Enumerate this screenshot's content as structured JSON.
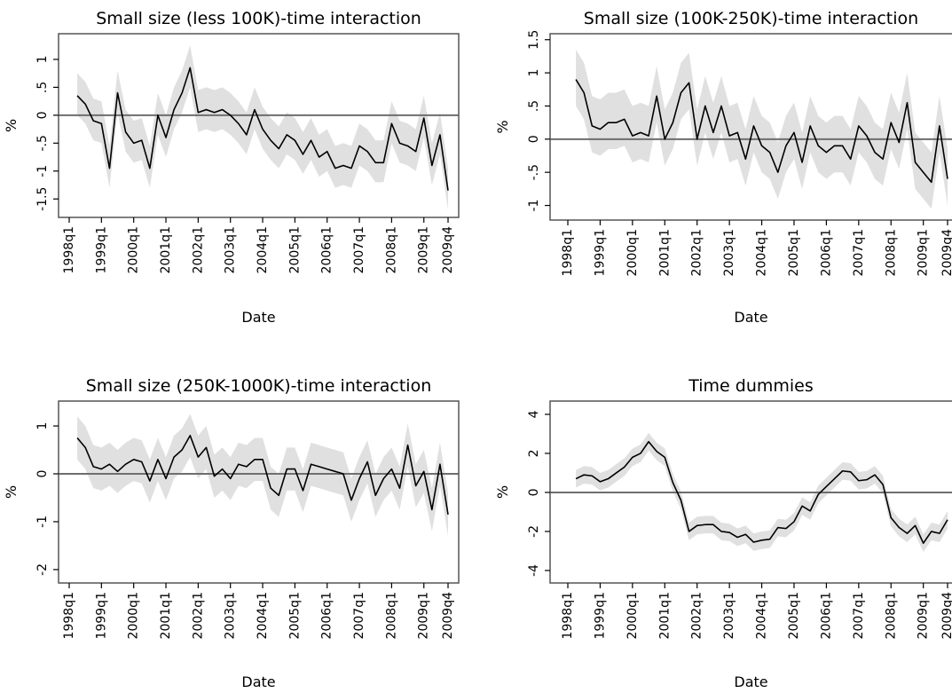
{
  "chart_data": [
    {
      "type": "line",
      "title": "Small size (less 100K)-time interaction",
      "xlabel": "Date",
      "ylabel": "%",
      "categories": [
        "1998q1",
        null,
        null,
        null,
        "1999q1",
        null,
        null,
        null,
        "2000q1",
        null,
        null,
        null,
        "2001q1",
        null,
        null,
        null,
        "2002q1",
        null,
        null,
        null,
        "2003q1",
        null,
        null,
        null,
        "2004q1",
        null,
        null,
        null,
        "2005q1",
        null,
        null,
        null,
        "2006q1",
        null,
        null,
        null,
        "2007q1",
        null,
        null,
        null,
        "2008q1",
        null,
        null,
        null,
        "2009q1",
        null,
        null,
        "2009q4"
      ],
      "values": [
        null,
        0.35,
        0.2,
        -0.1,
        -0.15,
        -0.95,
        0.4,
        -0.3,
        -0.5,
        -0.45,
        -0.95,
        0,
        -0.4,
        0.1,
        0.4,
        0.85,
        0.05,
        0.1,
        0.05,
        0.1,
        0,
        -0.15,
        -0.35,
        0.1,
        -0.25,
        -0.45,
        -0.6,
        -0.35,
        -0.45,
        -0.7,
        -0.45,
        -0.75,
        -0.65,
        -0.95,
        -0.9,
        -0.95,
        -0.55,
        -0.65,
        -0.85,
        -0.85,
        -0.15,
        -0.5,
        -0.55,
        -0.65,
        -0.05,
        -0.9,
        -0.35,
        -1.35
      ],
      "lower": [
        null,
        0,
        -0.15,
        -0.45,
        -0.5,
        -1.3,
        0.05,
        -0.65,
        -0.85,
        -0.8,
        -1.3,
        -0.35,
        -0.75,
        -0.25,
        0.05,
        0.5,
        -0.3,
        -0.25,
        -0.3,
        -0.25,
        -0.35,
        -0.5,
        -0.7,
        -0.25,
        -0.6,
        -0.8,
        -0.95,
        -0.7,
        -0.8,
        -1.05,
        -0.8,
        -1.1,
        -1,
        -1.3,
        -1.25,
        -1.3,
        -0.9,
        -1,
        -1.2,
        -1.2,
        -0.5,
        -0.85,
        -0.9,
        -1,
        -0.4,
        -1.25,
        -0.7,
        -1.7
      ],
      "upper": [
        null,
        0.75,
        0.6,
        0.3,
        0.25,
        -0.55,
        0.8,
        0.1,
        -0.1,
        -0.05,
        -0.55,
        0.4,
        0,
        0.5,
        0.8,
        1.25,
        0.45,
        0.5,
        0.45,
        0.5,
        0.4,
        0.25,
        0.05,
        0.5,
        0.15,
        -0.05,
        -0.2,
        0.05,
        -0.05,
        -0.3,
        -0.05,
        -0.35,
        -0.25,
        -0.55,
        -0.5,
        -0.55,
        -0.15,
        -0.25,
        -0.45,
        -0.45,
        0.25,
        -0.1,
        -0.15,
        -0.25,
        0.35,
        -0.5,
        0.05,
        -0.95
      ],
      "ylim": [
        -1.83,
        1.46
      ],
      "yticks": [
        1,
        {
          "value": 0.5,
          "label": ".5"
        },
        0,
        {
          "value": -0.5,
          "label": "-.5"
        },
        -1,
        -1.5
      ],
      "hline": 0,
      "color": "#000000",
      "band_color": "#e0e0e0",
      "hline_color": "#6e6e6e"
    },
    {
      "type": "line",
      "title": "Small size (100K-250K)-time interaction",
      "xlabel": "Date",
      "ylabel": "%",
      "categories": [
        "1998q1",
        null,
        null,
        null,
        "1999q1",
        null,
        null,
        null,
        "2000q1",
        null,
        null,
        null,
        "2001q1",
        null,
        null,
        null,
        "2002q1",
        null,
        null,
        null,
        "2003q1",
        null,
        null,
        null,
        "2004q1",
        null,
        null,
        null,
        "2005q1",
        null,
        null,
        null,
        "2006q1",
        null,
        null,
        null,
        "2007q1",
        null,
        null,
        null,
        "2008q1",
        null,
        null,
        null,
        "2009q1",
        null,
        null,
        "2009q4"
      ],
      "values": [
        null,
        0.9,
        0.7,
        0.2,
        0.15,
        0.25,
        0.25,
        0.3,
        0.05,
        0.1,
        0.05,
        0.65,
        0,
        0.25,
        0.7,
        0.85,
        0,
        0.5,
        0.1,
        0.5,
        0.05,
        0.1,
        -0.3,
        0.2,
        -0.1,
        -0.2,
        -0.5,
        -0.1,
        0.1,
        -0.35,
        0.2,
        -0.1,
        -0.2,
        -0.1,
        -0.1,
        -0.3,
        0.2,
        0.05,
        -0.2,
        -0.3,
        0.25,
        -0.05,
        0.55,
        -0.35,
        -0.5,
        -0.65,
        0.2,
        -0.6
      ],
      "lower": [
        null,
        0.5,
        0.3,
        -0.2,
        -0.25,
        -0.15,
        -0.15,
        -0.1,
        -0.35,
        -0.3,
        -0.35,
        0.25,
        -0.4,
        -0.15,
        0.3,
        0.45,
        -0.4,
        0.1,
        -0.3,
        0.1,
        -0.35,
        -0.3,
        -0.7,
        -0.2,
        -0.5,
        -0.6,
        -0.9,
        -0.5,
        -0.3,
        -0.75,
        -0.2,
        -0.5,
        -0.6,
        -0.5,
        -0.5,
        -0.7,
        -0.2,
        -0.35,
        -0.6,
        -0.7,
        -0.15,
        -0.45,
        0.15,
        -0.75,
        -0.9,
        -1.05,
        -0.2,
        -1
      ],
      "upper": [
        null,
        1.35,
        1.15,
        0.65,
        0.6,
        0.7,
        0.7,
        0.75,
        0.5,
        0.55,
        0.5,
        1.1,
        0.45,
        0.7,
        1.15,
        1.3,
        0.45,
        0.95,
        0.55,
        0.95,
        0.5,
        0.55,
        0.15,
        0.65,
        0.35,
        0.25,
        -0.05,
        0.35,
        0.55,
        0.1,
        0.65,
        0.35,
        0.25,
        0.35,
        0.35,
        0.15,
        0.65,
        0.5,
        0.25,
        0.15,
        0.7,
        0.4,
        1,
        0.1,
        -0.05,
        -0.2,
        0.65,
        -0.15
      ],
      "ylim": [
        -1.22,
        1.59
      ],
      "yticks": [
        1.5,
        1,
        {
          "value": 0.5,
          "label": ".5"
        },
        0,
        {
          "value": -0.5,
          "label": "-.5"
        },
        -1
      ],
      "hline": 0,
      "color": "#000000",
      "band_color": "#e0e0e0",
      "hline_color": "#6e6e6e"
    },
    {
      "type": "line",
      "title": "Small size (250K-1000K)-time interaction",
      "xlabel": "Date",
      "ylabel": "%",
      "categories": [
        "1998q1",
        null,
        null,
        null,
        "1999q1",
        null,
        null,
        null,
        "2000q1",
        null,
        null,
        null,
        "2001q1",
        null,
        null,
        null,
        "2002q1",
        null,
        null,
        null,
        "2003q1",
        null,
        null,
        null,
        "2004q1",
        null,
        null,
        null,
        "2005q1",
        null,
        null,
        null,
        "2006q1",
        null,
        null,
        null,
        "2007q1",
        null,
        null,
        null,
        "2008q1",
        null,
        null,
        null,
        "2009q1",
        null,
        null,
        "2009q4"
      ],
      "values": [
        null,
        0.75,
        0.55,
        0.15,
        0.1,
        0.2,
        0.05,
        0.2,
        0.3,
        0.25,
        -0.15,
        0.3,
        -0.1,
        0.35,
        0.5,
        0.8,
        0.35,
        0.55,
        -0.05,
        0.1,
        -0.1,
        0.2,
        0.15,
        0.3,
        0.3,
        -0.3,
        -0.45,
        0.1,
        0.1,
        -0.35,
        0.2,
        0.15,
        0.1,
        0.05,
        0,
        -0.55,
        -0.1,
        0.25,
        -0.45,
        -0.1,
        0.1,
        -0.3,
        0.6,
        -0.25,
        0.05,
        -0.75,
        0.2,
        -0.85
      ],
      "lower": [
        null,
        0.3,
        0.1,
        -0.3,
        -0.35,
        -0.25,
        -0.4,
        -0.25,
        -0.15,
        -0.2,
        -0.6,
        -0.15,
        -0.55,
        -0.1,
        0.05,
        0.35,
        -0.1,
        0.1,
        -0.5,
        -0.35,
        -0.55,
        -0.25,
        -0.3,
        -0.15,
        -0.15,
        -0.75,
        -0.9,
        -0.35,
        -0.35,
        -0.8,
        -0.25,
        -0.3,
        -0.35,
        -0.4,
        -0.45,
        -1,
        -0.55,
        -0.2,
        -0.9,
        -0.55,
        -0.35,
        -0.75,
        0.15,
        -0.7,
        -0.4,
        -1.2,
        -0.25,
        -1.3
      ],
      "upper": [
        null,
        1.2,
        1,
        0.6,
        0.55,
        0.65,
        0.5,
        0.65,
        0.75,
        0.7,
        0.3,
        0.75,
        0.35,
        0.8,
        0.95,
        1.25,
        0.8,
        1,
        0.4,
        0.55,
        0.35,
        0.65,
        0.6,
        0.75,
        0.75,
        0.15,
        0,
        0.55,
        0.55,
        0.1,
        0.65,
        0.6,
        0.55,
        0.5,
        0.45,
        -0.1,
        0.35,
        0.7,
        0,
        0.35,
        0.55,
        0.15,
        1.05,
        0.2,
        0.5,
        -0.3,
        0.65,
        -0.4
      ],
      "ylim": [
        -2.28,
        1.52
      ],
      "yticks": [
        1,
        0,
        -1,
        -2
      ],
      "hline": 0,
      "color": "#000000",
      "band_color": "#e0e0e0",
      "hline_color": "#6e6e6e"
    },
    {
      "type": "line",
      "title": "Time dummies",
      "xlabel": "Date",
      "ylabel": "%",
      "categories": [
        "1998q1",
        null,
        null,
        null,
        "1999q1",
        null,
        null,
        null,
        "2000q1",
        null,
        null,
        null,
        "2001q1",
        null,
        null,
        null,
        "2002q1",
        null,
        null,
        null,
        "2003q1",
        null,
        null,
        null,
        "2004q1",
        null,
        null,
        null,
        "2005q1",
        null,
        null,
        null,
        "2006q1",
        null,
        null,
        null,
        "2007q1",
        null,
        null,
        null,
        "2008q1",
        null,
        null,
        null,
        "2009q1",
        null,
        null,
        "2009q4"
      ],
      "values": [
        null,
        0.7,
        0.9,
        0.85,
        0.55,
        0.7,
        1,
        1.3,
        1.8,
        2,
        2.6,
        2.1,
        1.8,
        0.5,
        -0.4,
        -2,
        -1.7,
        -1.65,
        -1.65,
        -2,
        -2.05,
        -2.3,
        -2.15,
        -2.55,
        -2.45,
        -2.4,
        -1.8,
        -1.85,
        -1.5,
        -0.7,
        -0.95,
        -0.1,
        0.3,
        0.7,
        1.1,
        1.05,
        0.6,
        0.65,
        0.9,
        0.4,
        -1.3,
        -1.8,
        -2.1,
        -1.7,
        -2.6,
        -2,
        -2.1,
        -1.4
      ],
      "lower": [
        null,
        0.25,
        0.45,
        0.4,
        0.1,
        0.25,
        0.55,
        0.85,
        1.35,
        1.55,
        2.15,
        1.65,
        1.35,
        0.05,
        -0.85,
        -2.45,
        -2.15,
        -2.1,
        -2.1,
        -2.45,
        -2.5,
        -2.75,
        -2.6,
        -3,
        -2.9,
        -2.85,
        -2.25,
        -2.3,
        -1.95,
        -1.15,
        -1.4,
        -0.55,
        -0.15,
        0.25,
        0.65,
        0.6,
        0.15,
        0.2,
        0.45,
        -0.05,
        -1.75,
        -2.25,
        -2.55,
        -2.15,
        -3.05,
        -2.45,
        -2.55,
        -1.85
      ],
      "upper": [
        null,
        1.15,
        1.35,
        1.3,
        1,
        1.15,
        1.45,
        1.75,
        2.25,
        2.45,
        3.05,
        2.55,
        2.25,
        0.95,
        0.05,
        -1.55,
        -1.25,
        -1.2,
        -1.2,
        -1.55,
        -1.6,
        -1.85,
        -1.7,
        -2.1,
        -2,
        -1.95,
        -1.35,
        -1.4,
        -1.05,
        -0.25,
        -0.5,
        0.35,
        0.75,
        1.15,
        1.55,
        1.5,
        1.05,
        1.1,
        1.35,
        0.85,
        -0.85,
        -1.35,
        -1.65,
        -1.25,
        -2.15,
        -1.55,
        -1.65,
        -0.95
      ],
      "ylim": [
        -4.64,
        4.68
      ],
      "yticks": [
        4,
        2,
        0,
        -2,
        -4
      ],
      "hline": 0,
      "color": "#000000",
      "band_color": "#e0e0e0",
      "hline_color": "#6e6e6e"
    }
  ]
}
